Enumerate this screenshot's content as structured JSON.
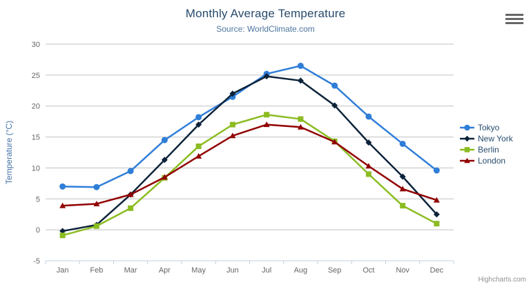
{
  "header": {
    "title": "Monthly Average Temperature",
    "subtitle": "Source: WorldClimate.com"
  },
  "credit_label": "Highcharts.com",
  "chart_data": {
    "type": "line",
    "title": "Monthly Average Temperature",
    "subtitle": "Source: WorldClimate.com",
    "xlabel": "",
    "ylabel": "Temperature (°C)",
    "categories": [
      "Jan",
      "Feb",
      "Mar",
      "Apr",
      "May",
      "Jun",
      "Jul",
      "Aug",
      "Sep",
      "Oct",
      "Nov",
      "Dec"
    ],
    "ylim": [
      -5,
      30
    ],
    "yticks": [
      -5,
      0,
      5,
      10,
      15,
      20,
      25,
      30
    ],
    "grid": true,
    "legend_position": "right",
    "colors": {
      "grid": "#C0C0C0",
      "axis_line": "#C0D0E0",
      "tick": "#C0D0E0",
      "label": "#666666"
    },
    "series": [
      {
        "name": "Tokyo",
        "color": "#2f7ed8",
        "marker": "circle",
        "values": [
          7.0,
          6.9,
          9.5,
          14.5,
          18.2,
          21.5,
          25.2,
          26.5,
          23.3,
          18.3,
          13.9,
          9.6
        ]
      },
      {
        "name": "New York",
        "color": "#0d233a",
        "marker": "diamond",
        "values": [
          -0.2,
          0.8,
          5.7,
          11.3,
          17.0,
          22.0,
          24.8,
          24.1,
          20.1,
          14.1,
          8.6,
          2.5
        ]
      },
      {
        "name": "Berlin",
        "color": "#8bbc21",
        "marker": "square",
        "values": [
          -0.9,
          0.6,
          3.5,
          8.4,
          13.5,
          17.0,
          18.6,
          17.9,
          14.3,
          9.0,
          3.9,
          1.0
        ]
      },
      {
        "name": "London",
        "color": "#910000",
        "marker": "triangle",
        "values": [
          3.9,
          4.2,
          5.7,
          8.5,
          11.9,
          15.2,
          17.0,
          16.6,
          14.2,
          10.3,
          6.6,
          4.8
        ]
      }
    ]
  }
}
